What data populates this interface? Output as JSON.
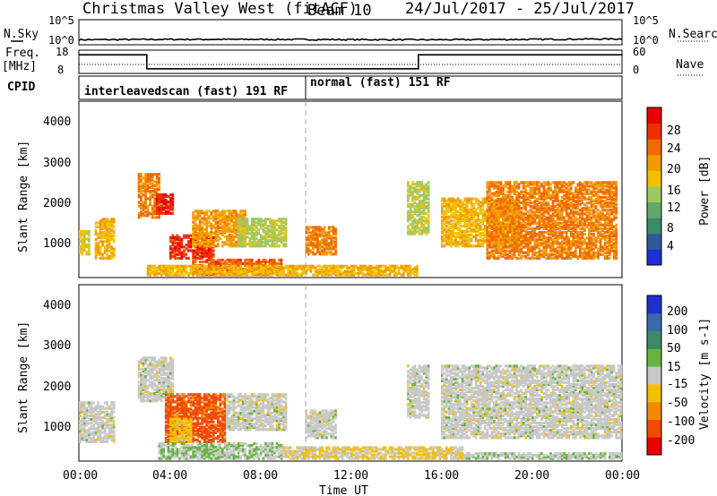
{
  "header": {
    "title": "Christmas Valley West (fitACF)",
    "beam": "Beam 10",
    "date_range": "24/Jul/2017 - 25/Jul/2017"
  },
  "panels": {
    "nsky": {
      "label": "N.Sky",
      "ticks": [
        "10^5",
        "10^0"
      ],
      "right_ticks": [
        "10^5",
        "10^0"
      ],
      "right_label": "N.Search"
    },
    "freq": {
      "label_line1": "Freq.",
      "label_line2": "[MHz]",
      "ticks": [
        "18",
        "8"
      ],
      "right_ticks": [
        "60",
        "0"
      ],
      "right_label": "Nave"
    },
    "cpid": {
      "label": "CPID",
      "modes": [
        "interleavedscan (fast) 191 RF",
        "normal (fast) 151 RF"
      ]
    }
  },
  "axes": {
    "y_label": "Slant Range [km]",
    "y_ticks": [
      "1000",
      "2000",
      "3000",
      "4000"
    ],
    "x_label": "Time UT",
    "x_ticks": [
      "00:00",
      "04:00",
      "08:00",
      "12:00",
      "16:00",
      "20:00",
      "00:00"
    ]
  },
  "colorbars": {
    "power": {
      "label": "Power [dB]",
      "ticks": [
        "4",
        "8",
        "12",
        "16",
        "20",
        "24",
        "28"
      ],
      "colors": [
        "#1e2ed8",
        "#2e5a9a",
        "#3c8a6a",
        "#62a86c",
        "#a0c860",
        "#f2c000",
        "#f29a00",
        "#f06a00",
        "#ee3000",
        "#e80000"
      ]
    },
    "velocity": {
      "label": "Velocity [m s-1]",
      "ticks": [
        "200",
        "100",
        "50",
        "15",
        "-15",
        "-50",
        "-100",
        "-200"
      ],
      "colors": [
        "#2030c8",
        "#3a6aa8",
        "#3c8a6a",
        "#66b440",
        "#c8c8c8",
        "#f2c000",
        "#f28a00",
        "#f04a00",
        "#e80000"
      ]
    }
  },
  "chart_data": [
    {
      "type": "line",
      "name": "N.Sky / N.Search",
      "title": "Christmas Valley West (fitACF)",
      "xlabel": "",
      "ylabel": "N.Sky",
      "x": [
        "00:00",
        "04:00",
        "08:00",
        "12:00",
        "16:00",
        "20:00",
        "24:00"
      ],
      "series": [
        {
          "name": "N.Sky",
          "values": [
            10,
            12,
            12,
            11,
            10,
            12,
            15
          ]
        }
      ],
      "yscale": "log",
      "ylim": [
        1,
        100000
      ]
    },
    {
      "type": "line",
      "name": "Frequency",
      "xlabel": "",
      "ylabel": "Freq. [MHz]",
      "steps": [
        {
          "start": "00:00",
          "end": "03:00",
          "freq_mhz": 16
        },
        {
          "start": "03:00",
          "end": "15:00",
          "freq_mhz": 10
        },
        {
          "start": "15:00",
          "end": "24:00",
          "freq_mhz": 16
        }
      ],
      "ylim": [
        8,
        18
      ]
    },
    {
      "type": "heatmap",
      "name": "Power",
      "ylabel": "Slant Range [km]",
      "xlabel": "Time UT",
      "ylim": [
        180,
        4500
      ],
      "xlim": [
        "00:00",
        "24:00"
      ],
      "clim": [
        0,
        30
      ],
      "units": "dB",
      "regions": [
        {
          "t0": 0.0,
          "t1": 0.5,
          "r0": 700,
          "r1": 1300,
          "level": 16
        },
        {
          "t0": 0.7,
          "t1": 1.6,
          "r0": 600,
          "r1": 1600,
          "level": 18
        },
        {
          "t0": 2.6,
          "t1": 3.6,
          "r0": 1600,
          "r1": 2700,
          "level": 22
        },
        {
          "t0": 3.4,
          "t1": 4.2,
          "r0": 1700,
          "r1": 2200,
          "level": 28
        },
        {
          "t0": 4.0,
          "t1": 6.0,
          "r0": 600,
          "r1": 1200,
          "level": 27
        },
        {
          "t0": 5.0,
          "t1": 7.4,
          "r0": 900,
          "r1": 1800,
          "level": 20
        },
        {
          "t0": 7.0,
          "t1": 9.2,
          "r0": 900,
          "r1": 1600,
          "level": 14
        },
        {
          "t0": 5.0,
          "t1": 9.0,
          "r0": 200,
          "r1": 600,
          "level": 24
        },
        {
          "t0": 10.0,
          "t1": 11.4,
          "r0": 700,
          "r1": 1400,
          "level": 22
        },
        {
          "t0": 3.0,
          "t1": 15.0,
          "r0": 190,
          "r1": 450,
          "level": 18
        },
        {
          "t0": 14.5,
          "t1": 15.5,
          "r0": 1200,
          "r1": 2500,
          "level": 14
        },
        {
          "t0": 16.0,
          "t1": 19.5,
          "r0": 900,
          "r1": 2100,
          "level": 18
        },
        {
          "t0": 18.0,
          "t1": 23.8,
          "r0": 600,
          "r1": 2500,
          "level": 22
        }
      ]
    },
    {
      "type": "heatmap",
      "name": "Velocity",
      "ylabel": "Slant Range [km]",
      "xlabel": "Time UT",
      "ylim": [
        180,
        4500
      ],
      "xlim": [
        "00:00",
        "24:00"
      ],
      "clim": [
        -250,
        250
      ],
      "units": "m/s",
      "regions": [
        {
          "t0": 0.0,
          "t1": 1.6,
          "r0": 600,
          "r1": 1600,
          "level": 0
        },
        {
          "t0": 2.6,
          "t1": 4.2,
          "r0": 1600,
          "r1": 2700,
          "level": 0
        },
        {
          "t0": 3.8,
          "t1": 6.5,
          "r0": 600,
          "r1": 1800,
          "level": -180
        },
        {
          "t0": 4.0,
          "t1": 5.0,
          "r0": 600,
          "r1": 1200,
          "level": -60
        },
        {
          "t0": 6.5,
          "t1": 9.2,
          "r0": 900,
          "r1": 1800,
          "level": 0
        },
        {
          "t0": 10.0,
          "t1": 11.4,
          "r0": 700,
          "r1": 1400,
          "level": 0
        },
        {
          "t0": 3.5,
          "t1": 9.0,
          "r0": 190,
          "r1": 600,
          "level": 30
        },
        {
          "t0": 9.0,
          "t1": 17.0,
          "r0": 190,
          "r1": 500,
          "level": -30
        },
        {
          "t0": 14.5,
          "t1": 15.5,
          "r0": 1200,
          "r1": 2500,
          "level": 0
        },
        {
          "t0": 16.0,
          "t1": 24.0,
          "r0": 700,
          "r1": 2500,
          "level": 0
        },
        {
          "t0": 17.0,
          "t1": 24.0,
          "r0": 190,
          "r1": 350,
          "level": 20
        }
      ]
    }
  ]
}
